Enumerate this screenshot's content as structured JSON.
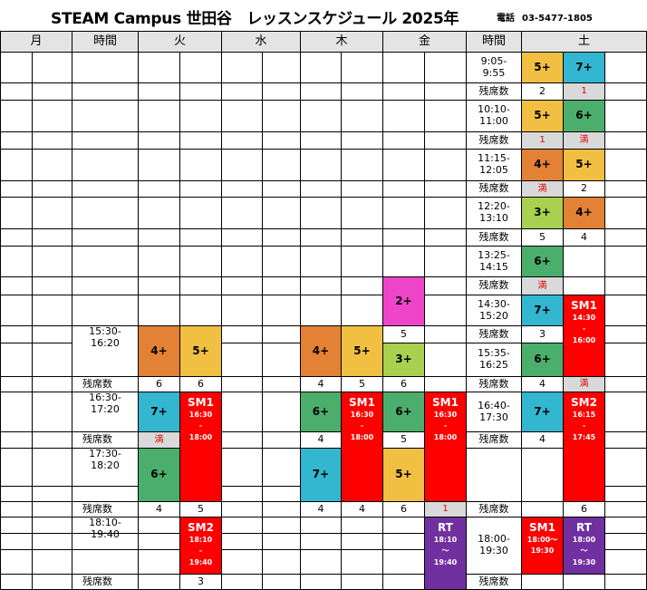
{
  "title": "STEAM Campus 世田谷　レッスンスケジュール 2025年",
  "tel_label": "電話",
  "tel_number": "03-5477-1805",
  "headers": {
    "mon": "月",
    "time_left": "時間",
    "tue": "火",
    "wed": "水",
    "thu": "木",
    "fri": "金",
    "time_right": "時間",
    "sat": "土"
  },
  "labels": {
    "remaining": "残席数",
    "full": "満"
  },
  "colors": {
    "orange": "#e38135",
    "yellow": "#f1c043",
    "blue": "#33b6cf",
    "green": "#4cae6c",
    "lime": "#a9d04e",
    "pink": "#ee44c8",
    "red": "#ff0000",
    "purple": "#7030a0",
    "header": "#e4e4e4"
  },
  "weekday": {
    "times": [
      "15:30-16:20",
      "16:30-17:20",
      "17:30-18:20",
      "18:10-19:40"
    ],
    "tue": {
      "a": "4+",
      "b": "5+",
      "seat_a": "6",
      "seat_b": "6",
      "c": "7+",
      "seat_c": "満",
      "d": "6+",
      "seat_d": "4",
      "seat_e": "5",
      "sm1": {
        "title": "SM1",
        "start": "16:30",
        "sep": "-",
        "end": "18:00"
      },
      "sm2": {
        "title": "SM2",
        "start": "18:10",
        "sep": "-",
        "end": "19:40"
      },
      "seat_sm2": "3"
    },
    "thu": {
      "a": "4+",
      "b": "5+",
      "seat_a": "4",
      "seat_b": "5",
      "c": "6+",
      "seat_c": "4",
      "d": "7+",
      "seat_d": "4",
      "seat_e": "4",
      "sm1": {
        "title": "SM1",
        "start": "16:30",
        "sep": "-",
        "end": "18:00"
      }
    },
    "fri": {
      "p": "2+",
      "seat_p": "5",
      "a": "3+",
      "seat_a": "6",
      "c": "6+",
      "seat_c": "5",
      "d": "5+",
      "seat_d": "6",
      "sm1": {
        "title": "SM1",
        "start": "16:30",
        "sep": "-",
        "end": "18:00"
      },
      "seat_sm1": "1",
      "rt": {
        "title": "RT",
        "start": "18:10",
        "sep": "～",
        "end": "19:40"
      }
    }
  },
  "saturday": {
    "slots": [
      {
        "time": "9:05-9:55",
        "a": "5+",
        "b": "7+",
        "seat_a": "2",
        "seat_b": "1"
      },
      {
        "time": "10:10-11:00",
        "a": "5+",
        "b": "6+",
        "seat_a": "1",
        "seat_b": "満"
      },
      {
        "time": "11:15-12:05",
        "a": "4+",
        "b": "5+",
        "seat_a": "満",
        "seat_b": "2"
      },
      {
        "time": "12:20-13:10",
        "a": "3+",
        "b": "4+",
        "seat_a": "5",
        "seat_b": "4"
      },
      {
        "time": "13:25-14:15",
        "a": "6+",
        "seat_a": "満"
      },
      {
        "time": "14:30-15:20",
        "a": "7+",
        "seat_a": "3"
      },
      {
        "time": "15:35-16:25",
        "a": "6+",
        "seat_a": "4",
        "seat_b": "満"
      },
      {
        "time": "16:40-17:30",
        "a": "7+",
        "seat_a": "4"
      },
      {
        "seat_b": "6"
      },
      {
        "time": "18:00-19:30"
      }
    ],
    "sm1_b": {
      "title": "SM1",
      "start": "14:30",
      "sep": "-",
      "end": "16:00"
    },
    "sm2_b": {
      "title": "SM2",
      "start": "16:15",
      "sep": "-",
      "end": "17:45"
    },
    "sm1_a": {
      "title": "SM1",
      "range": "18:00～",
      "end": "19:30"
    },
    "rt_b": {
      "title": "RT",
      "start": "18:00",
      "sep": "～",
      "end": "19:30"
    }
  }
}
